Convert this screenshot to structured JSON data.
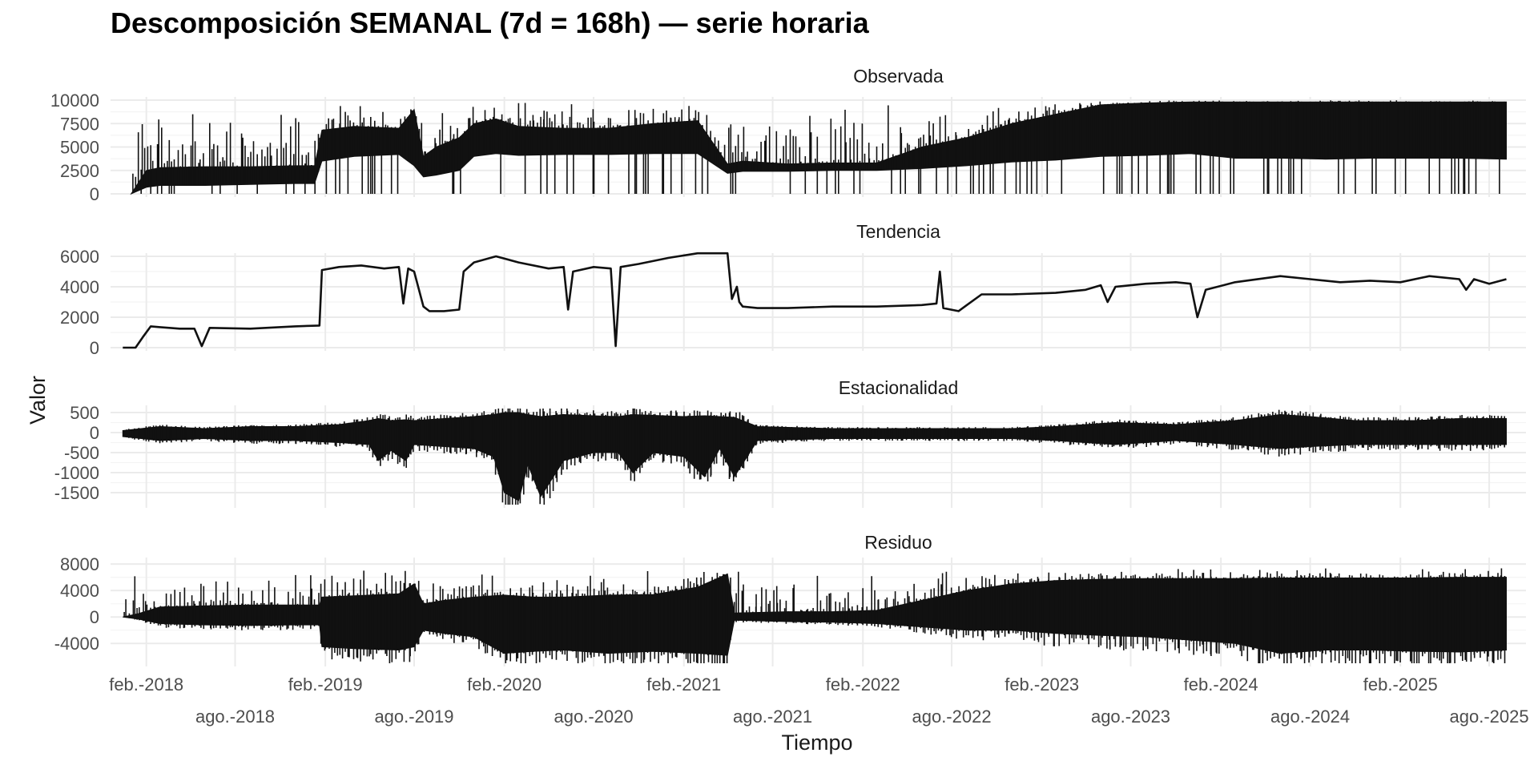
{
  "chart_data": {
    "type": "line",
    "title": "Descomposición SEMANAL (7d = 168h) — serie horaria",
    "xlabel": "Tiempo",
    "ylabel": "Valor",
    "x_ticks_upper": [
      "feb.-2018",
      "feb.-2019",
      "feb.-2020",
      "feb.-2021",
      "feb.-2022",
      "feb.-2023",
      "feb.-2024",
      "feb.-2025"
    ],
    "x_ticks_lower": [
      "ago.-2018",
      "ago.-2019",
      "ago.-2020",
      "ago.-2021",
      "ago.-2022",
      "ago.-2023",
      "ago.-2024",
      "ago.-2025"
    ],
    "xlim": [
      "2017-11-20",
      "2025-10-15"
    ],
    "panels": [
      {
        "name": "Observada",
        "ylim": [
          0,
          10000
        ],
        "yticks": [
          0,
          2500,
          5000,
          7500,
          10000
        ],
        "ytick_labels": [
          "0",
          "2500",
          "5000",
          "7500",
          "10000"
        ],
        "style": "band",
        "x": [
          "2018-01-01",
          "2018-02-01",
          "2018-03-01",
          "2018-06-01",
          "2018-09-01",
          "2018-12-01",
          "2019-01-10",
          "2019-01-25",
          "2019-04-01",
          "2019-07-01",
          "2019-08-01",
          "2019-08-20",
          "2019-09-15",
          "2019-11-01",
          "2019-12-01",
          "2020-01-15",
          "2020-03-01",
          "2020-06-01",
          "2020-09-01",
          "2020-12-01",
          "2021-03-01",
          "2021-05-01",
          "2021-06-01",
          "2021-09-01",
          "2021-12-01",
          "2022-03-01",
          "2022-06-01",
          "2022-09-01",
          "2022-12-01",
          "2023-03-01",
          "2023-06-01",
          "2023-09-01",
          "2023-12-01",
          "2024-03-01",
          "2024-06-01",
          "2024-09-01",
          "2024-12-01",
          "2025-03-01",
          "2025-06-01",
          "2025-09-05"
        ],
        "low": [
          0,
          700,
          900,
          900,
          1000,
          1100,
          1100,
          3500,
          4000,
          4200,
          3000,
          1800,
          2000,
          2500,
          4000,
          4300,
          4100,
          4200,
          4200,
          4300,
          4300,
          2200,
          2400,
          2400,
          2500,
          2500,
          2700,
          3000,
          3400,
          3600,
          4000,
          4100,
          4300,
          3800,
          3800,
          3700,
          3800,
          3800,
          3800,
          3700
        ],
        "high": [
          0,
          2500,
          2800,
          2900,
          2900,
          3000,
          3000,
          6800,
          7200,
          7000,
          9000,
          4000,
          5000,
          6000,
          7500,
          8000,
          7200,
          7000,
          7000,
          7500,
          7800,
          3200,
          3500,
          3200,
          3300,
          3300,
          5000,
          6000,
          7500,
          8500,
          9500,
          9700,
          9800,
          9800,
          9800,
          9800,
          9800,
          9800,
          9800,
          9800
        ],
        "spikes_max": 10000
      },
      {
        "name": "Tendencia",
        "ylim": [
          0,
          6000
        ],
        "yticks": [
          0,
          2000,
          4000,
          6000
        ],
        "ytick_labels": [
          "0",
          "2000",
          "4000",
          "6000"
        ],
        "style": "line",
        "x": [
          "2017-12-15",
          "2018-01-10",
          "2018-01-25",
          "2018-02-10",
          "2018-03-01",
          "2018-03-20",
          "2018-04-10",
          "2018-05-10",
          "2018-05-25",
          "2018-06-10",
          "2018-09-01",
          "2018-12-01",
          "2019-01-20",
          "2019-01-25",
          "2019-03-01",
          "2019-04-15",
          "2019-06-01",
          "2019-07-01",
          "2019-07-10",
          "2019-07-20",
          "2019-08-01",
          "2019-08-20",
          "2019-09-01",
          "2019-10-01",
          "2019-11-01",
          "2019-11-10",
          "2019-12-01",
          "2020-01-15",
          "2020-03-01",
          "2020-05-01",
          "2020-06-01",
          "2020-06-10",
          "2020-06-20",
          "2020-08-01",
          "2020-09-05",
          "2020-09-15",
          "2020-09-25",
          "2020-11-01",
          "2021-01-01",
          "2021-03-01",
          "2021-05-01",
          "2021-05-10",
          "2021-05-20",
          "2021-05-25",
          "2021-06-01",
          "2021-07-01",
          "2021-09-01",
          "2021-12-01",
          "2022-03-01",
          "2022-06-01",
          "2022-07-01",
          "2022-07-08",
          "2022-07-15",
          "2022-08-15",
          "2022-09-01",
          "2022-10-01",
          "2022-12-01",
          "2023-03-01",
          "2023-05-01",
          "2023-06-01",
          "2023-06-15",
          "2023-07-01",
          "2023-09-01",
          "2023-11-01",
          "2023-12-01",
          "2023-12-15",
          "2024-01-01",
          "2024-03-01",
          "2024-06-01",
          "2024-08-01",
          "2024-10-01",
          "2024-12-01",
          "2025-02-01",
          "2025-04-01",
          "2025-06-01",
          "2025-06-15",
          "2025-07-01",
          "2025-08-01",
          "2025-09-05"
        ],
        "y": [
          0,
          0,
          700,
          1400,
          1350,
          1300,
          1250,
          1250,
          100,
          1300,
          1250,
          1400,
          1450,
          5100,
          5300,
          5400,
          5200,
          5300,
          2900,
          5200,
          5000,
          2700,
          2400,
          2400,
          2500,
          5000,
          5600,
          6000,
          5600,
          5200,
          5300,
          2500,
          5000,
          5300,
          5200,
          100,
          5300,
          5500,
          5900,
          6200,
          6200,
          3200,
          4000,
          3000,
          2700,
          2600,
          2600,
          2700,
          2700,
          2800,
          2900,
          5000,
          2600,
          2400,
          2800,
          3500,
          3500,
          3600,
          3800,
          4100,
          3000,
          4000,
          4200,
          4300,
          4200,
          2000,
          3800,
          4300,
          4700,
          4500,
          4300,
          4400,
          4300,
          4700,
          4500,
          3800,
          4500,
          4200,
          4500
        ]
      },
      {
        "name": "Estacionalidad",
        "ylim": [
          -1800,
          600
        ],
        "yticks": [
          -1500,
          -1000,
          -500,
          0,
          500
        ],
        "ytick_labels": [
          "-1500",
          "-1000",
          "-500",
          "0",
          "500"
        ],
        "style": "band",
        "x": [
          "2017-12-15",
          "2018-03-01",
          "2018-06-01",
          "2018-09-01",
          "2018-12-01",
          "2019-03-01",
          "2019-05-01",
          "2019-05-20",
          "2019-06-15",
          "2019-07-15",
          "2019-08-01",
          "2019-10-01",
          "2019-12-01",
          "2020-01-10",
          "2020-02-01",
          "2020-03-01",
          "2020-03-20",
          "2020-04-15",
          "2020-06-01",
          "2020-08-01",
          "2020-09-20",
          "2020-10-20",
          "2020-12-01",
          "2021-02-01",
          "2021-03-15",
          "2021-04-15",
          "2021-05-15",
          "2021-07-01",
          "2021-12-01",
          "2022-06-01",
          "2022-12-01",
          "2023-03-01",
          "2023-07-01",
          "2023-11-01",
          "2024-03-01",
          "2024-06-01",
          "2024-08-01",
          "2024-11-01",
          "2025-03-01",
          "2025-06-01",
          "2025-09-05"
        ],
        "low": [
          -100,
          -200,
          -150,
          -200,
          -200,
          -250,
          -300,
          -700,
          -450,
          -700,
          -300,
          -350,
          -400,
          -600,
          -1500,
          -1700,
          -800,
          -1600,
          -700,
          -500,
          -500,
          -1000,
          -500,
          -600,
          -1100,
          -400,
          -1100,
          -200,
          -150,
          -150,
          -150,
          -200,
          -300,
          -200,
          -300,
          -400,
          -350,
          -300,
          -300,
          -300,
          -300
        ],
        "high": [
          50,
          150,
          100,
          150,
          150,
          200,
          300,
          350,
          300,
          320,
          300,
          350,
          400,
          450,
          500,
          500,
          450,
          400,
          450,
          420,
          400,
          450,
          430,
          400,
          420,
          400,
          380,
          150,
          100,
          100,
          100,
          150,
          250,
          200,
          300,
          450,
          400,
          300,
          300,
          350,
          350
        ]
      },
      {
        "name": "Residuo",
        "ylim": [
          -7000,
          8500
        ],
        "yticks": [
          -4000,
          0,
          4000,
          8000
        ],
        "ytick_labels": [
          "-4000",
          "0",
          "4000",
          "8000"
        ],
        "style": "band",
        "x": [
          "2017-12-15",
          "2018-01-15",
          "2018-03-01",
          "2018-06-01",
          "2018-09-01",
          "2018-12-01",
          "2019-01-20",
          "2019-01-25",
          "2019-04-01",
          "2019-07-01",
          "2019-08-01",
          "2019-08-20",
          "2019-10-01",
          "2019-12-01",
          "2020-02-01",
          "2020-04-01",
          "2020-06-01",
          "2020-09-01",
          "2020-12-01",
          "2021-03-01",
          "2021-05-01",
          "2021-05-15",
          "2021-09-01",
          "2021-12-01",
          "2022-03-01",
          "2022-06-01",
          "2022-09-01",
          "2022-12-01",
          "2023-03-01",
          "2023-06-01",
          "2023-09-01",
          "2023-12-01",
          "2024-03-01",
          "2024-06-01",
          "2024-09-01",
          "2024-12-01",
          "2025-03-01",
          "2025-06-01",
          "2025-09-05"
        ],
        "low": [
          0,
          -300,
          -1000,
          -1200,
          -1300,
          -1200,
          -1200,
          -4500,
          -4800,
          -5000,
          -4500,
          -2000,
          -2500,
          -3000,
          -5500,
          -5200,
          -5000,
          -5500,
          -5200,
          -5500,
          -5800,
          -500,
          -700,
          -800,
          -1000,
          -1500,
          -2000,
          -2000,
          -2500,
          -2800,
          -3000,
          -3500,
          -4000,
          -5500,
          -5000,
          -5000,
          -5200,
          -5300,
          -5000
        ],
        "high": [
          0,
          500,
          1500,
          1700,
          1800,
          1800,
          1800,
          3000,
          3200,
          3500,
          5000,
          2000,
          2500,
          3000,
          3300,
          3000,
          3000,
          3300,
          3400,
          4500,
          6500,
          600,
          800,
          800,
          1000,
          2500,
          4000,
          5000,
          5500,
          5700,
          5800,
          5800,
          5800,
          5900,
          5900,
          5900,
          5900,
          6000,
          6000
        ],
        "spikes_max": 7500
      }
    ]
  }
}
